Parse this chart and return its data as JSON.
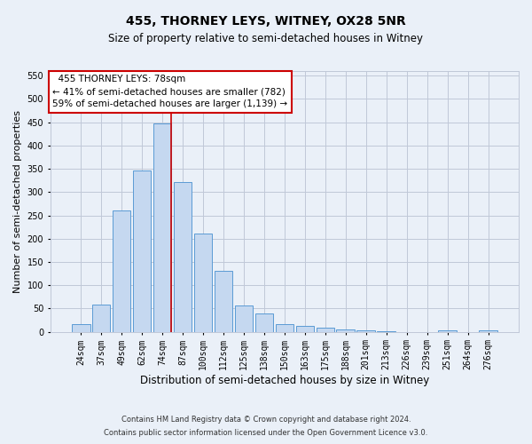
{
  "title": "455, THORNEY LEYS, WITNEY, OX28 5NR",
  "subtitle": "Size of property relative to semi-detached houses in Witney",
  "xlabel": "Distribution of semi-detached houses by size in Witney",
  "ylabel": "Number of semi-detached properties",
  "categories": [
    "24sqm",
    "37sqm",
    "49sqm",
    "62sqm",
    "74sqm",
    "87sqm",
    "100sqm",
    "112sqm",
    "125sqm",
    "138sqm",
    "150sqm",
    "163sqm",
    "175sqm",
    "188sqm",
    "201sqm",
    "213sqm",
    "226sqm",
    "239sqm",
    "251sqm",
    "264sqm",
    "276sqm"
  ],
  "values": [
    17,
    58,
    260,
    346,
    448,
    322,
    210,
    130,
    57,
    40,
    17,
    12,
    8,
    5,
    3,
    1,
    0,
    0,
    3,
    0,
    3
  ],
  "bar_color": "#c5d8f0",
  "bar_edge_color": "#5b9bd5",
  "grid_color": "#c0c8d8",
  "background_color": "#eaf0f8",
  "property_label": "455 THORNEY LEYS: 78sqm",
  "pct_smaller": 41,
  "count_smaller": 782,
  "pct_larger": 59,
  "count_larger": 1139,
  "vline_bin_index": 4,
  "ylim": [
    0,
    560
  ],
  "yticks": [
    0,
    50,
    100,
    150,
    200,
    250,
    300,
    350,
    400,
    450,
    500,
    550
  ],
  "footer1": "Contains HM Land Registry data © Crown copyright and database right 2024.",
  "footer2": "Contains public sector information licensed under the Open Government Licence v3.0.",
  "annotation_box_color": "#ffffff",
  "annotation_border_color": "#cc0000",
  "vline_color": "#cc0000",
  "title_fontsize": 10,
  "subtitle_fontsize": 8.5,
  "ylabel_fontsize": 8,
  "xlabel_fontsize": 8.5,
  "tick_fontsize": 7,
  "ann_fontsize": 7.5,
  "footer_fontsize": 6
}
